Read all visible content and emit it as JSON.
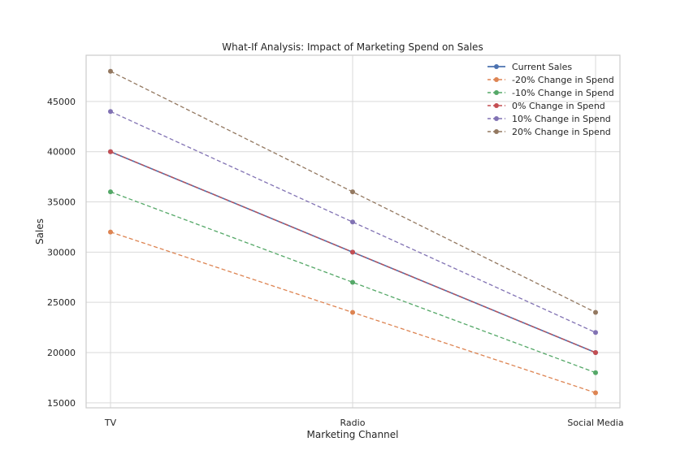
{
  "chart_data": {
    "type": "line",
    "title": "What-If Analysis: Impact of Marketing Spend on Sales",
    "xlabel": "Marketing Channel",
    "ylabel": "Sales",
    "categories": [
      "TV",
      "Radio",
      "Social Media"
    ],
    "y_ticks": [
      15000,
      20000,
      25000,
      30000,
      35000,
      40000,
      45000
    ],
    "ylim": [
      14500,
      49600
    ],
    "grid": true,
    "legend_position": "top-right",
    "series": [
      {
        "name": "Current Sales",
        "values": [
          40000,
          30000,
          20000
        ],
        "color": "#4c72b0",
        "style": "solid"
      },
      {
        "name": "-20% Change in Spend",
        "values": [
          32000,
          24000,
          16000
        ],
        "color": "#dd8452",
        "style": "dashed"
      },
      {
        "name": "-10% Change in Spend",
        "values": [
          36000,
          27000,
          18000
        ],
        "color": "#55a868",
        "style": "dashed"
      },
      {
        "name": "0% Change in Spend",
        "values": [
          40000,
          30000,
          20000
        ],
        "color": "#c44e52",
        "style": "dashed"
      },
      {
        "name": "10% Change in Spend",
        "values": [
          44000,
          33000,
          22000
        ],
        "color": "#8172b3",
        "style": "dashed"
      },
      {
        "name": "20% Change in Spend",
        "values": [
          48000,
          36000,
          24000
        ],
        "color": "#937860",
        "style": "dashed"
      }
    ]
  }
}
